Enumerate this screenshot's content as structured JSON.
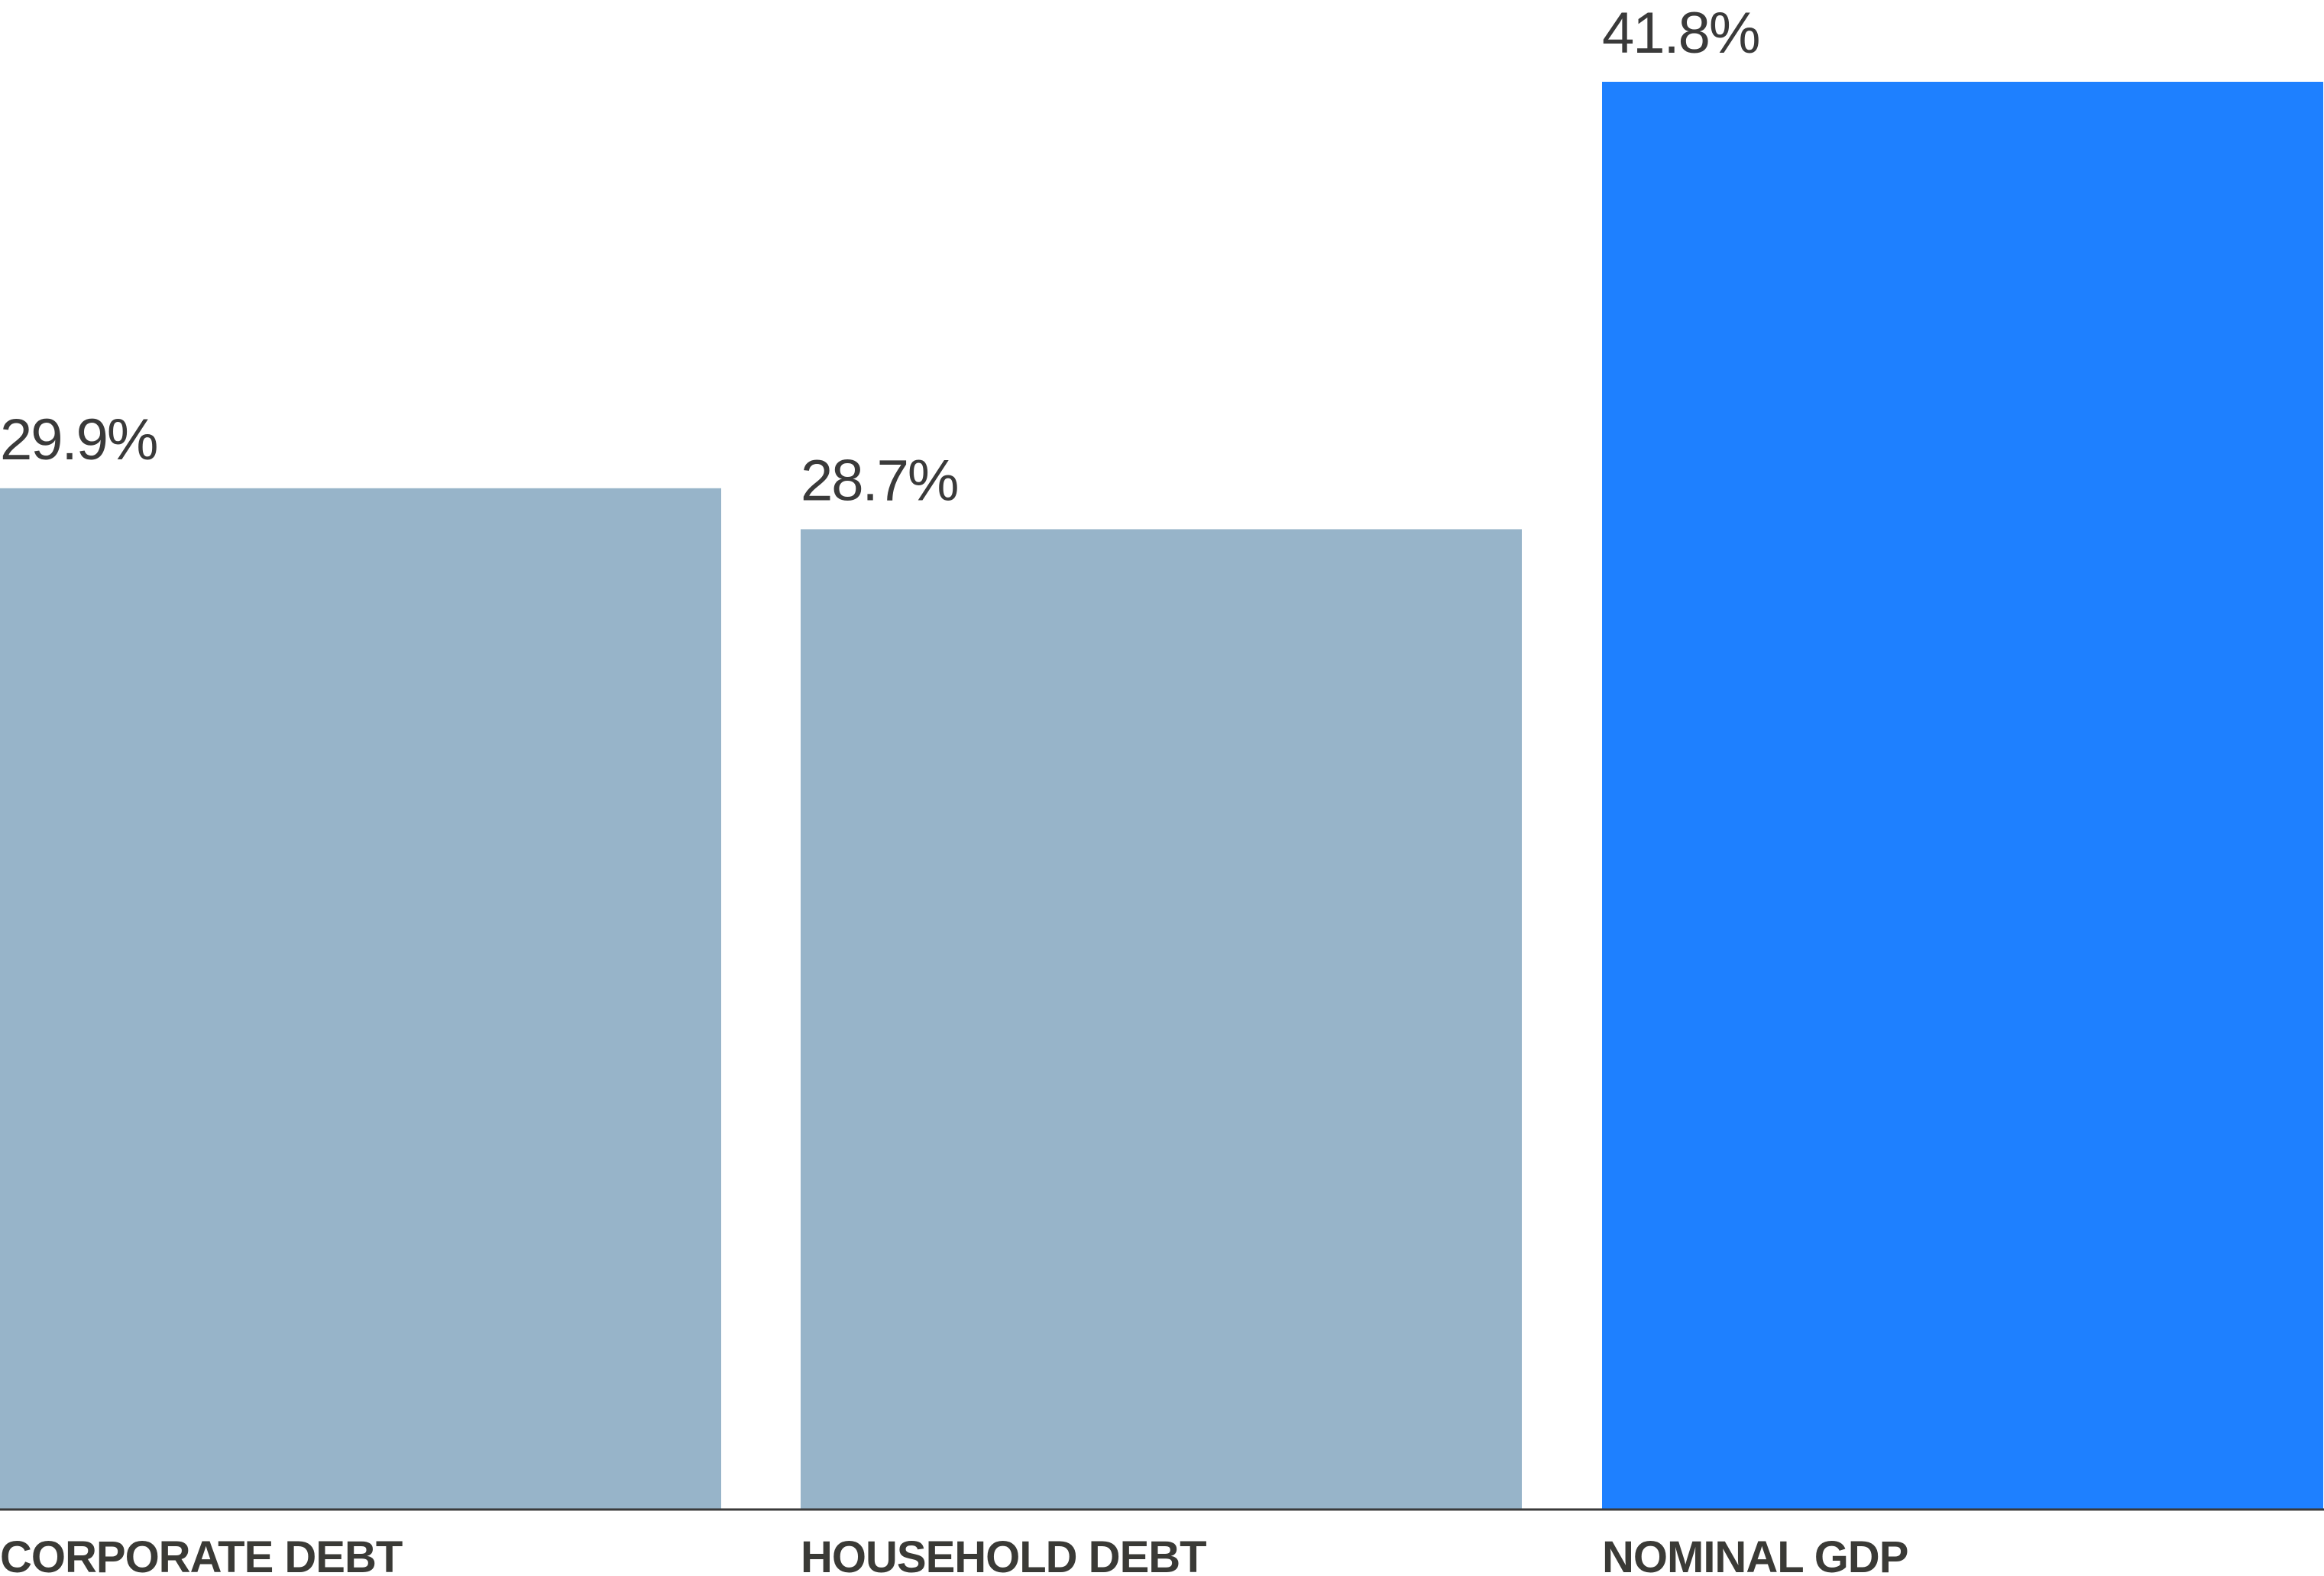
{
  "chart_data": {
    "type": "bar",
    "title": "",
    "xlabel": "",
    "ylabel": "",
    "categories": [
      "CORPORATE DEBT",
      "HOUSEHOLD DEBT",
      "NOMINAL GDP"
    ],
    "values": [
      29.9,
      28.7,
      41.8
    ],
    "value_labels": [
      "29.9%",
      "28.7%",
      "41.8%"
    ],
    "ylim": [
      0,
      43
    ],
    "grid": false,
    "colors": [
      "#97b4c9",
      "#97b4c9",
      "#1e80ff"
    ],
    "baseline_color": "#3a3a3a"
  }
}
